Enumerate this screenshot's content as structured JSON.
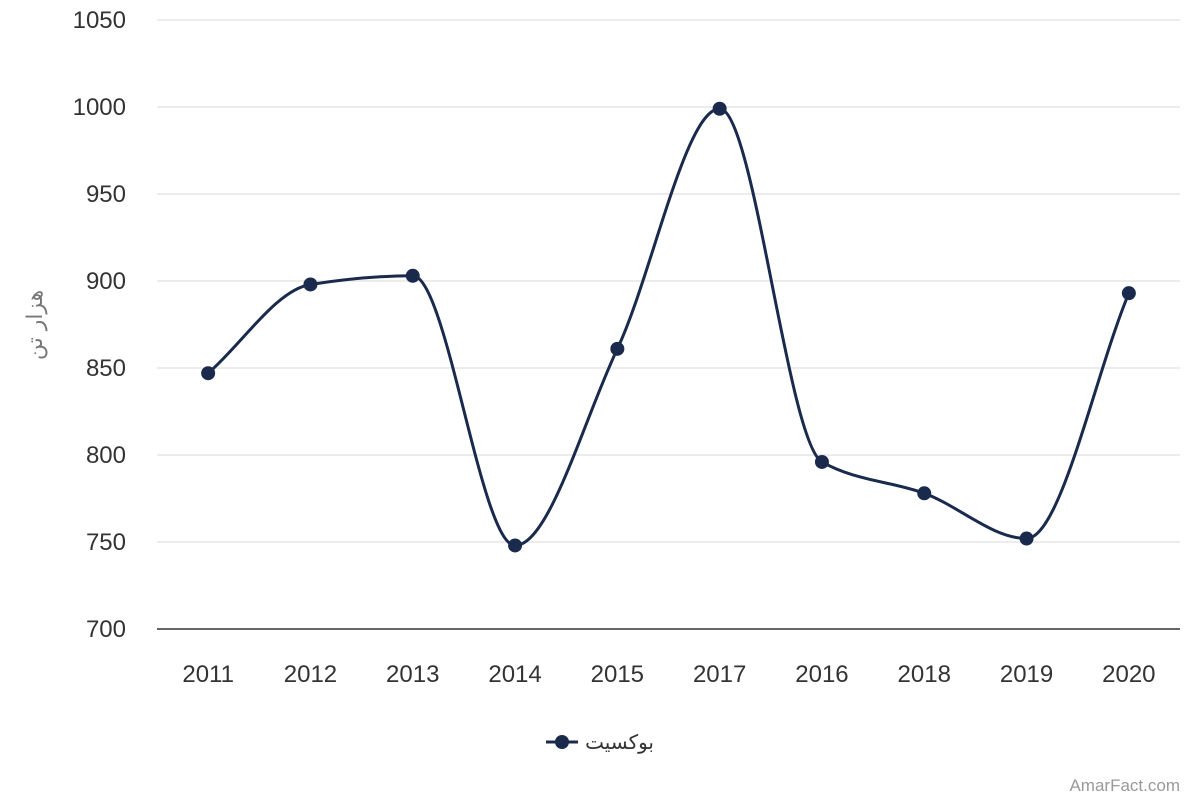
{
  "chart_data": {
    "type": "line",
    "title": "",
    "xlabel": "",
    "ylabel": "هزار تن",
    "categories": [
      "2011",
      "2012",
      "2013",
      "2014",
      "2015",
      "2017",
      "2016",
      "2018",
      "2019",
      "2020"
    ],
    "series": [
      {
        "name": "بوکسیت",
        "values": [
          847,
          898,
          903,
          748,
          861,
          999,
          796,
          778,
          752,
          893
        ],
        "color": "#1a2a4d"
      }
    ],
    "ylim": [
      700,
      1050
    ],
    "yticks": [
      700,
      750,
      800,
      850,
      900,
      950,
      1000,
      1050
    ],
    "grid": true,
    "smooth": true,
    "legend_position": "bottom-center"
  },
  "credit": "AmarFact.com",
  "colors": {
    "series": "#1a2a4d",
    "grid": "#e6e6e6",
    "axis": "#333333"
  }
}
